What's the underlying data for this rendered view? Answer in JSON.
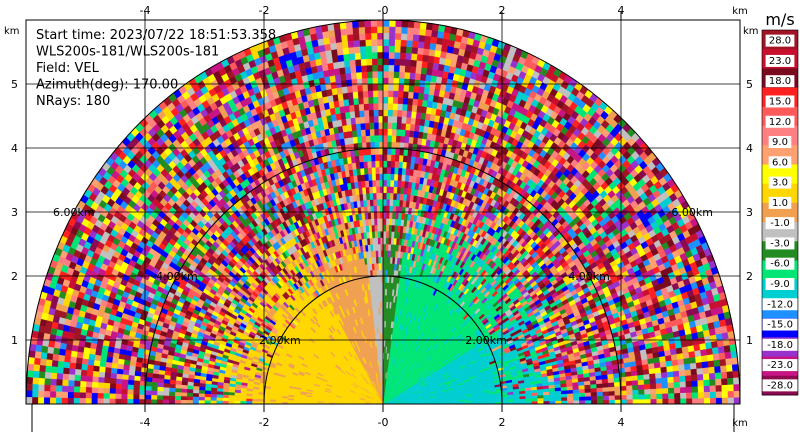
{
  "chart_data": {
    "type": "heatmap",
    "subtype": "ppi-radar-sector",
    "info": [
      "Start time: 2023/07/22 18:51:53.358",
      "WLS200s-181/WLS200s-181",
      "Field: VEL",
      "Azimuth(deg): 170.00",
      "NRays: 180"
    ],
    "units": {
      "x": "km",
      "y": "km"
    },
    "xlim": [
      -6.0,
      6.0
    ],
    "ylim": [
      0.0,
      6.0
    ],
    "x_ticks": [
      -4,
      -2,
      0,
      2,
      4
    ],
    "y_ticks": [
      1,
      2,
      3,
      4,
      5
    ],
    "x_tick_labels": [
      "-4",
      "-2",
      "-0",
      "2",
      "4"
    ],
    "y_tick_labels": [
      "1",
      "2",
      "3",
      "4",
      "5"
    ],
    "grid": true,
    "range_rings": [
      {
        "radius_km": 2.0,
        "label": "2.00km"
      },
      {
        "radius_km": 4.0,
        "label": "4.00km"
      },
      {
        "radius_km": 6.0,
        "label": "6.00km"
      }
    ],
    "max_range_km": 6.0,
    "colorbar": {
      "title": "m/s",
      "range": [
        -30,
        30
      ],
      "tick_values": [
        28,
        23,
        18,
        15,
        12,
        9,
        6,
        3,
        1,
        -1,
        -3,
        -6,
        -9,
        -12,
        -15,
        -18,
        -23,
        -28
      ],
      "tick_labels": [
        "28.0",
        "23.0",
        "18.0",
        "15.0",
        "12.0",
        "9.0",
        "6.0",
        "3.0",
        "1.0",
        "-1.0",
        "-3.0",
        "-6.0",
        "-9.0",
        "-12.0",
        "-15.0",
        "-18.0",
        "-23.0",
        "-28.0"
      ],
      "colors": [
        "#7a0a1e",
        "#c8102e",
        "#ff0000",
        "#ff5a5a",
        "#ff7f7f",
        "#ffa07a",
        "#ffff00",
        "#ffd700",
        "#f4a460",
        "#c0c0c0",
        "#228b22",
        "#00ff7f",
        "#00ced1",
        "#1e90ff",
        "#0000ff",
        "#9932cc",
        "#c71585",
        "#8b0a50"
      ],
      "colors_top_to_bottom": [
        "#a01525",
        "#c8102e",
        "#7a0a1e",
        "#ff2020",
        "#ff5a5a",
        "#ff8080",
        "#ffa070",
        "#ffff00",
        "#ffd700",
        "#f0a050",
        "#c0c0c0",
        "#228b22",
        "#00e676",
        "#00ced1",
        "#1e90ff",
        "#0000ff",
        "#9932cc",
        "#c71585",
        "#8b0a50"
      ]
    },
    "fields": {
      "near_range_km": 1.9,
      "sectors": [
        {
          "theta_min_deg": 120,
          "theta_max_deg": 180,
          "color": "#ffd700",
          "alt": "#f0a050"
        },
        {
          "theta_min_deg": 97,
          "theta_max_deg": 120,
          "color": "#f0a050",
          "alt": "#ffd700"
        },
        {
          "theta_min_deg": 90,
          "theta_max_deg": 97,
          "color": "#c0c0c0",
          "alt": "#f0a050"
        },
        {
          "theta_min_deg": 82,
          "theta_max_deg": 90,
          "color": "#228b22",
          "alt": "#c0c0c0"
        },
        {
          "theta_min_deg": 30,
          "theta_max_deg": 82,
          "color": "#00e676",
          "alt": "#00ced1"
        },
        {
          "theta_min_deg": 0,
          "theta_max_deg": 30,
          "color": "#00ced1",
          "alt": "#00e676"
        }
      ]
    }
  }
}
